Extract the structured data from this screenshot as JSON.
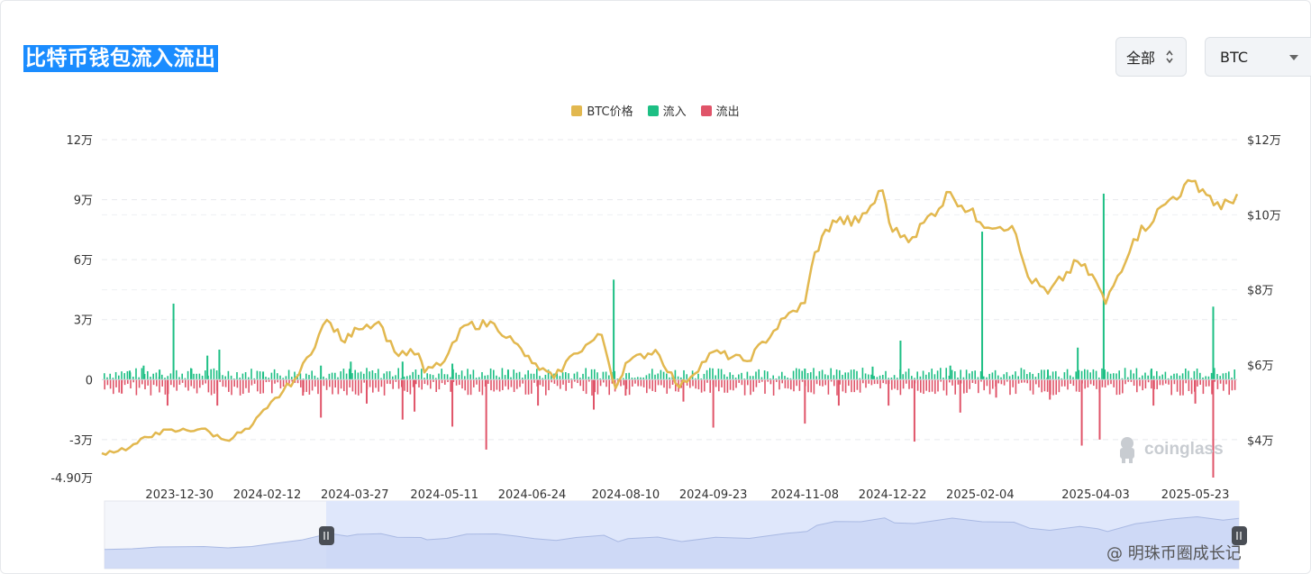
{
  "header": {
    "title": "比特币钱包流入流出",
    "range_select": "全部",
    "coin_select": "BTC"
  },
  "watermark": "coinglass",
  "corner_credit": "@ 明珠币圈成长记",
  "colors": {
    "price": "#e2b84f",
    "inflow": "#1dbf84",
    "outflow": "#e05469"
  },
  "chart_data": {
    "type": "bar+line",
    "title": "比特币钱包流入流出",
    "legend": [
      "BTC价格",
      "流入",
      "流出"
    ],
    "legend_position": "top-center",
    "grid": true,
    "x_ticks": [
      "2023-12-30",
      "2024-02-12",
      "2024-03-27",
      "2024-05-11",
      "2024-06-24",
      "2024-08-10",
      "2024-09-23",
      "2024-11-08",
      "2024-12-22",
      "2025-02-04",
      "2025-04-03",
      "2025-05-23"
    ],
    "x_range": [
      "2023-11-21",
      "2025-06-13"
    ],
    "y_left": {
      "ticks": [
        "12万",
        "9万",
        "6万",
        "3万",
        "0",
        "-3万",
        "-4.90万"
      ],
      "range": [
        -49000,
        120000
      ]
    },
    "y_right": {
      "ticks": [
        "$12万",
        "$10万",
        "$8万",
        "$6万",
        "$4万"
      ],
      "range": [
        30000,
        120000
      ]
    },
    "series": [
      {
        "name": "BTC价格",
        "type": "line",
        "axis": "right",
        "points": [
          [
            "2023-11-21",
            36500
          ],
          [
            "2023-12-05",
            38000
          ],
          [
            "2023-12-18",
            42000
          ],
          [
            "2023-12-30",
            42500
          ],
          [
            "2024-01-10",
            43000
          ],
          [
            "2024-01-22",
            40000
          ],
          [
            "2024-02-03",
            43000
          ],
          [
            "2024-02-12",
            48500
          ],
          [
            "2024-02-28",
            57500
          ],
          [
            "2024-03-13",
            72000
          ],
          [
            "2024-03-22",
            66000
          ],
          [
            "2024-03-27",
            69900
          ],
          [
            "2024-04-08",
            71500
          ],
          [
            "2024-04-16",
            63500
          ],
          [
            "2024-04-28",
            63000
          ],
          [
            "2024-05-01",
            58000
          ],
          [
            "2024-05-11",
            61000
          ],
          [
            "2024-05-21",
            70500
          ],
          [
            "2024-06-05",
            71000
          ],
          [
            "2024-06-15",
            66000
          ],
          [
            "2024-06-24",
            60500
          ],
          [
            "2024-07-05",
            56500
          ],
          [
            "2024-07-15",
            63000
          ],
          [
            "2024-07-29",
            68000
          ],
          [
            "2024-08-05",
            53800
          ],
          [
            "2024-08-10",
            60500
          ],
          [
            "2024-08-25",
            64000
          ],
          [
            "2024-09-06",
            54000
          ],
          [
            "2024-09-23",
            63500
          ],
          [
            "2024-10-10",
            61000
          ],
          [
            "2024-10-29",
            72500
          ],
          [
            "2024-11-08",
            76500
          ],
          [
            "2024-11-13",
            90000
          ],
          [
            "2024-11-22",
            98500
          ],
          [
            "2024-12-05",
            98000
          ],
          [
            "2024-12-17",
            106500
          ],
          [
            "2024-12-22",
            95500
          ],
          [
            "2025-01-01",
            94000
          ],
          [
            "2025-01-20",
            106000
          ],
          [
            "2025-02-04",
            98000
          ],
          [
            "2025-02-20",
            97000
          ],
          [
            "2025-02-28",
            83500
          ],
          [
            "2025-03-10",
            79000
          ],
          [
            "2025-03-25",
            87500
          ],
          [
            "2025-04-03",
            82500
          ],
          [
            "2025-04-08",
            76300
          ],
          [
            "2025-04-22",
            93500
          ],
          [
            "2025-05-10",
            104000
          ],
          [
            "2025-05-23",
            109000
          ],
          [
            "2025-06-05",
            101500
          ],
          [
            "2025-06-13",
            105500
          ]
        ]
      },
      {
        "name": "流入",
        "type": "bar",
        "axis": "left",
        "points": [
          [
            "2023-12-05",
            4500
          ],
          [
            "2023-12-12",
            7000
          ],
          [
            "2023-12-20",
            5000
          ],
          [
            "2023-12-27",
            38000
          ],
          [
            "2024-01-05",
            5500
          ],
          [
            "2024-01-13",
            12000
          ],
          [
            "2024-01-19",
            15000
          ],
          [
            "2024-02-10",
            4000
          ],
          [
            "2024-03-10",
            7000
          ],
          [
            "2024-03-25",
            9000
          ],
          [
            "2024-04-20",
            9000
          ],
          [
            "2024-05-15",
            8000
          ],
          [
            "2024-06-12",
            5000
          ],
          [
            "2024-08-04",
            50000
          ],
          [
            "2024-11-08",
            5500
          ],
          [
            "2024-12-12",
            6500
          ],
          [
            "2024-12-26",
            19500
          ],
          [
            "2025-01-20",
            7000
          ],
          [
            "2025-02-05",
            74000
          ],
          [
            "2025-03-10",
            5000
          ],
          [
            "2025-03-25",
            16000
          ],
          [
            "2025-04-07",
            93000
          ],
          [
            "2025-05-01",
            5500
          ],
          [
            "2025-06-01",
            36500
          ]
        ]
      },
      {
        "name": "流出",
        "type": "bar",
        "axis": "left",
        "points": [
          [
            "2023-12-01",
            -7000
          ],
          [
            "2023-12-24",
            -13000
          ],
          [
            "2024-01-18",
            -13000
          ],
          [
            "2024-03-01",
            -8000
          ],
          [
            "2024-03-10",
            -19000
          ],
          [
            "2024-04-02",
            -12000
          ],
          [
            "2024-04-20",
            -20000
          ],
          [
            "2024-04-26",
            -16000
          ],
          [
            "2024-05-15",
            -23500
          ],
          [
            "2024-06-01",
            -35000
          ],
          [
            "2024-06-27",
            -13000
          ],
          [
            "2024-07-25",
            -15000
          ],
          [
            "2024-08-10",
            -8000
          ],
          [
            "2024-09-08",
            -11000
          ],
          [
            "2024-09-23",
            -24000
          ],
          [
            "2024-11-08",
            -22000
          ],
          [
            "2024-11-25",
            -13000
          ],
          [
            "2024-12-20",
            -13000
          ],
          [
            "2025-01-02",
            -31000
          ],
          [
            "2025-01-25",
            -16500
          ],
          [
            "2025-02-12",
            -9000
          ],
          [
            "2025-03-11",
            -10000
          ],
          [
            "2025-03-27",
            -33000
          ],
          [
            "2025-04-05",
            -30000
          ],
          [
            "2025-05-02",
            -13000
          ],
          [
            "2025-05-23",
            -12000
          ],
          [
            "2025-06-01",
            -49000
          ]
        ]
      }
    ]
  }
}
